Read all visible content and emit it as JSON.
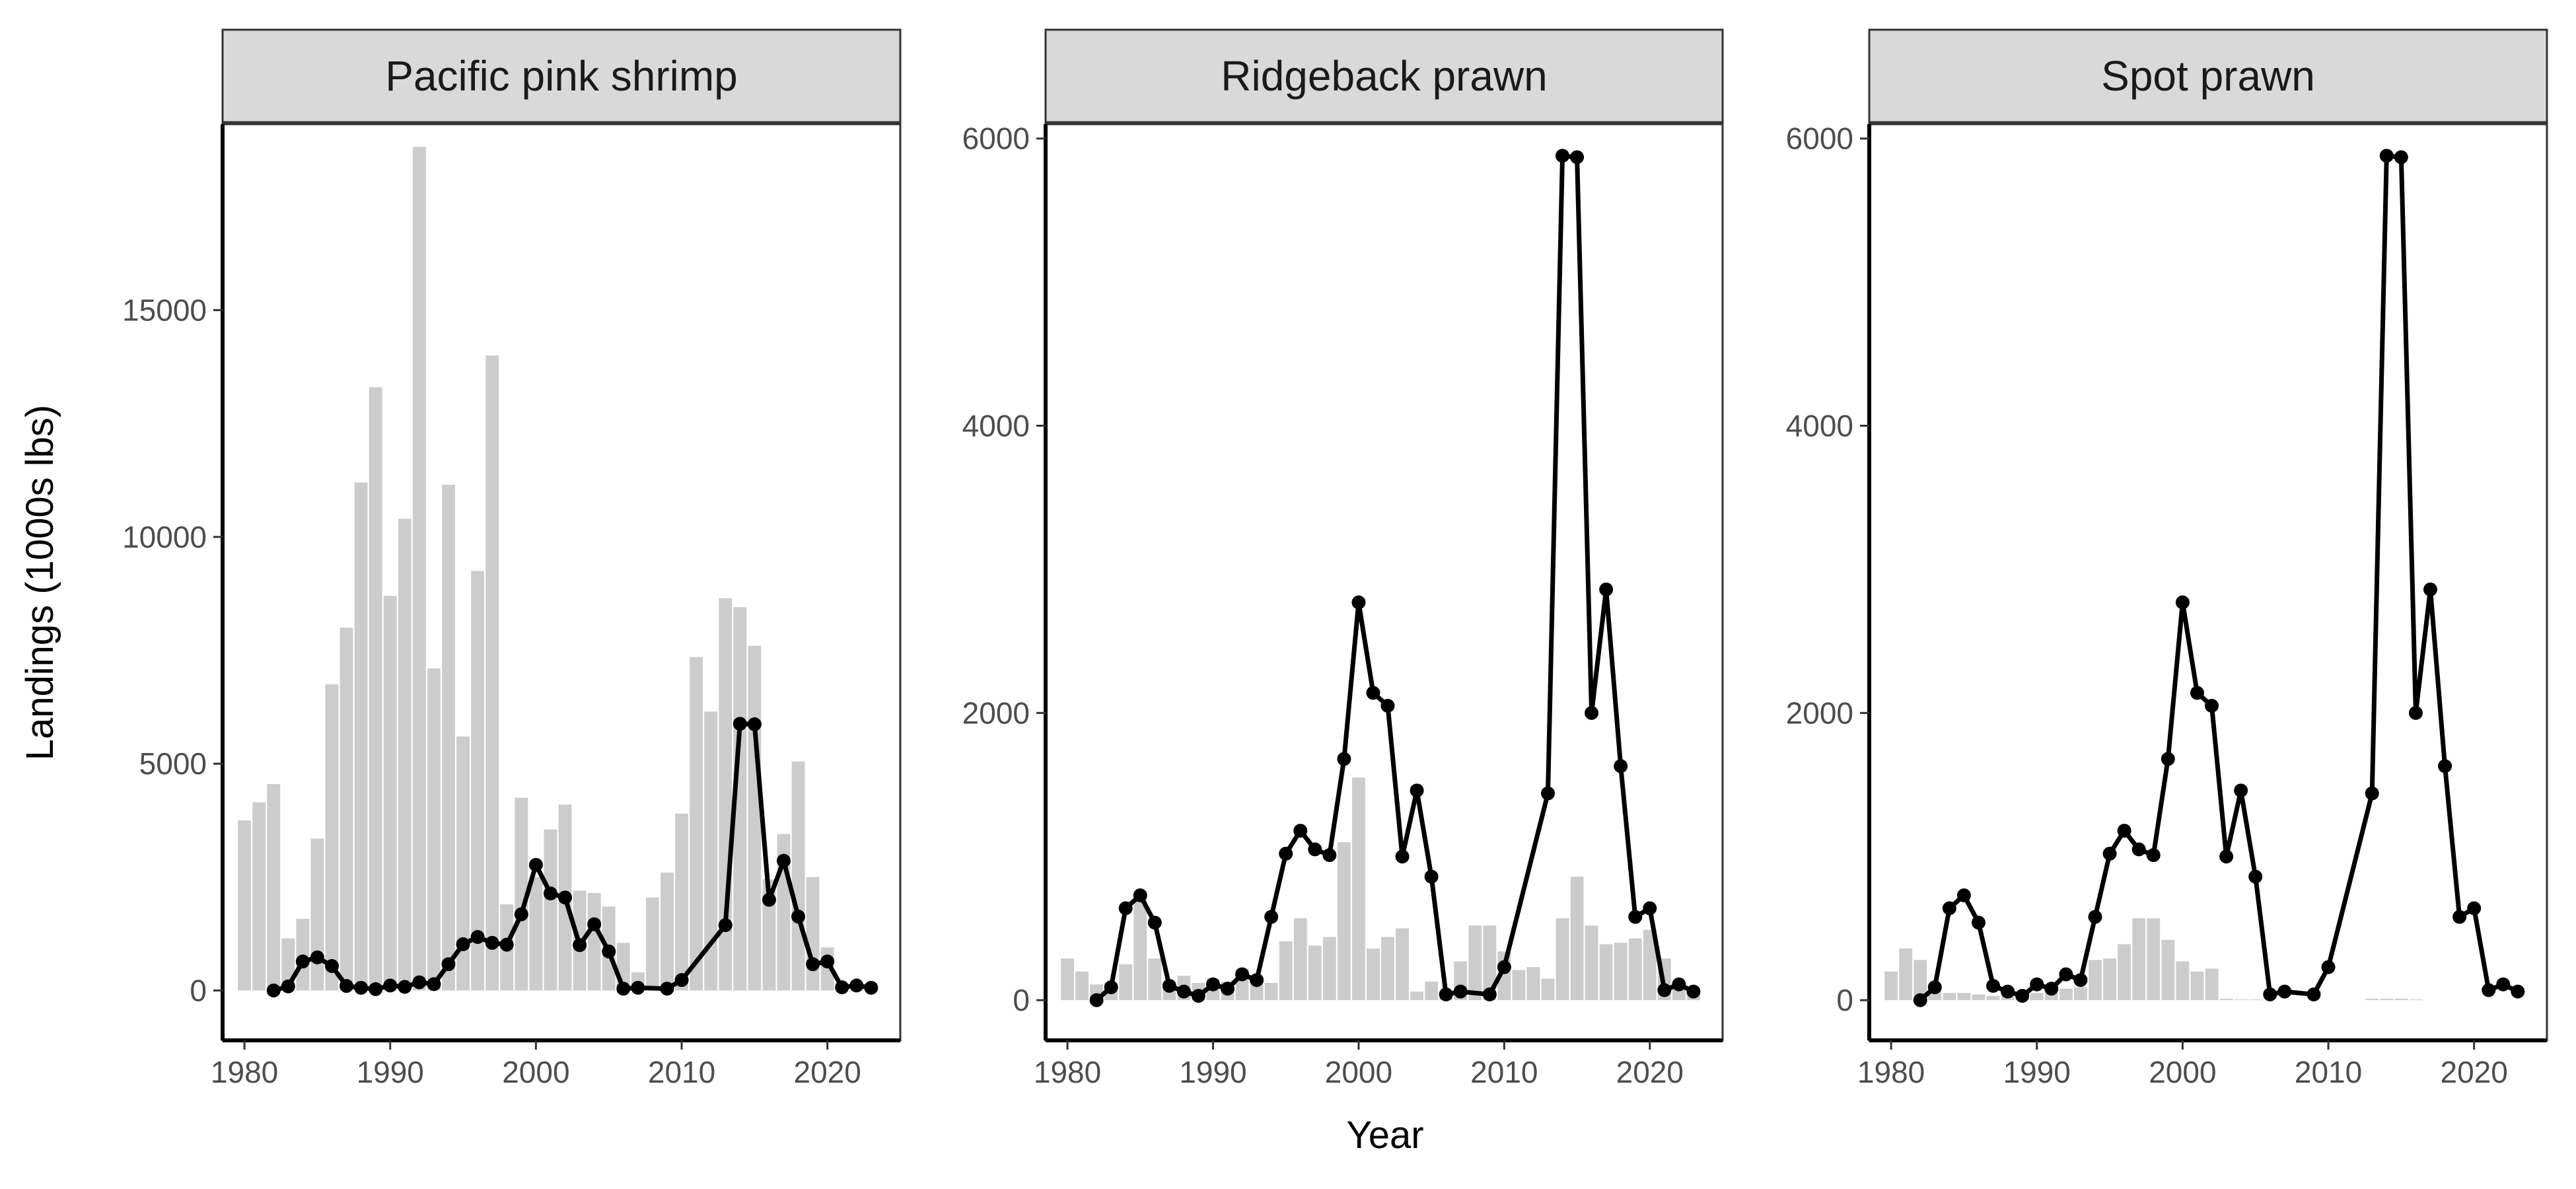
{
  "figure": {
    "xlabel": "Year",
    "ylabel": "Landings (1000s lbs)"
  },
  "chart_data": [
    {
      "type": "bar",
      "title": "Pacific pink shrimp",
      "xlim": [
        1978.5,
        2025
      ],
      "ylim": [
        -1100,
        19100
      ],
      "x_ticks": [
        1980,
        1990,
        2000,
        2010,
        2020
      ],
      "y_ticks": [
        0,
        5000,
        10000,
        15000
      ],
      "grid": false,
      "bars": {
        "x": [
          1980,
          1981,
          1982,
          1983,
          1984,
          1985,
          1986,
          1987,
          1988,
          1989,
          1990,
          1991,
          1992,
          1993,
          1994,
          1995,
          1996,
          1997,
          1998,
          1999,
          2000,
          2001,
          2002,
          2003,
          2004,
          2005,
          2006,
          2007,
          2008,
          2009,
          2010,
          2011,
          2012,
          2013,
          2014,
          2015,
          2016,
          2017,
          2018,
          2019,
          2020,
          2021,
          2022,
          2023
        ],
        "values": [
          3750,
          4150,
          4550,
          1150,
          1580,
          3350,
          6750,
          8000,
          11200,
          13300,
          8700,
          10400,
          18600,
          7100,
          11150,
          5600,
          9250,
          14000,
          1900,
          4250,
          2500,
          3550,
          4100,
          2200,
          2150,
          1850,
          1050,
          400,
          2050,
          2600,
          3900,
          7350,
          6150,
          8650,
          8450,
          7600,
          2450,
          3450,
          5050,
          2500,
          950,
          50,
          100,
          50
        ]
      },
      "line": {
        "x": [
          1982,
          1983,
          1984,
          1985,
          1986,
          1987,
          1988,
          1989,
          1990,
          1991,
          1992,
          1993,
          1994,
          1995,
          1996,
          1997,
          1998,
          1999,
          2000,
          2001,
          2002,
          2003,
          2004,
          2005,
          2006,
          2007,
          2009,
          2010,
          2013,
          2014,
          2015,
          2016,
          2017,
          2018,
          2019,
          2020,
          2021,
          2022,
          2023
        ],
        "values": [
          0,
          90,
          640,
          730,
          540,
          100,
          60,
          30,
          110,
          80,
          180,
          140,
          580,
          1020,
          1180,
          1050,
          1010,
          1680,
          2770,
          2140,
          2050,
          1000,
          1460,
          860,
          40,
          60,
          40,
          230,
          1440,
          5880,
          5870,
          2000,
          2860,
          1630,
          580,
          640,
          70,
          110,
          60
        ]
      }
    },
    {
      "type": "bar",
      "title": "Ridgeback prawn",
      "xlim": [
        1978.5,
        2025
      ],
      "ylim": [
        -280,
        6100
      ],
      "x_ticks": [
        1980,
        1990,
        2000,
        2010,
        2020
      ],
      "y_ticks": [
        0,
        2000,
        4000,
        6000
      ],
      "grid": false,
      "bars": {
        "x": [
          1980,
          1981,
          1982,
          1983,
          1984,
          1985,
          1986,
          1987,
          1988,
          1989,
          1990,
          1991,
          1992,
          1993,
          1994,
          1995,
          1996,
          1997,
          1998,
          1999,
          2000,
          2001,
          2002,
          2003,
          2004,
          2005,
          2006,
          2007,
          2008,
          2009,
          2010,
          2011,
          2012,
          2013,
          2014,
          2015,
          2016,
          2017,
          2018,
          2019,
          2020,
          2021,
          2022,
          2023
        ],
        "values": [
          290,
          200,
          110,
          120,
          250,
          750,
          290,
          120,
          170,
          120,
          150,
          130,
          220,
          150,
          120,
          410,
          570,
          380,
          440,
          1100,
          1550,
          360,
          440,
          500,
          60,
          130,
          60,
          270,
          520,
          520,
          340,
          210,
          230,
          150,
          570,
          860,
          520,
          390,
          400,
          430,
          490,
          290,
          100,
          50
        ]
      },
      "line": {
        "x": [
          1982,
          1983,
          1984,
          1985,
          1986,
          1987,
          1988,
          1989,
          1990,
          1991,
          1992,
          1993,
          1994,
          1995,
          1996,
          1997,
          1998,
          1999,
          2000,
          2001,
          2002,
          2003,
          2004,
          2005,
          2006,
          2007,
          2009,
          2010,
          2013,
          2014,
          2015,
          2016,
          2017,
          2018,
          2019,
          2020,
          2021,
          2022,
          2023
        ],
        "values": [
          0,
          90,
          640,
          730,
          540,
          100,
          60,
          30,
          110,
          80,
          180,
          140,
          580,
          1020,
          1180,
          1050,
          1010,
          1680,
          2770,
          2140,
          2050,
          1000,
          1460,
          860,
          40,
          60,
          40,
          230,
          1440,
          5880,
          5870,
          2000,
          2860,
          1630,
          580,
          640,
          70,
          110,
          60
        ]
      }
    },
    {
      "type": "bar",
      "title": "Spot prawn",
      "xlim": [
        1978.5,
        2025
      ],
      "ylim": [
        -280,
        6100
      ],
      "x_ticks": [
        1980,
        1990,
        2000,
        2010,
        2020
      ],
      "y_ticks": [
        0,
        2000,
        4000,
        6000
      ],
      "grid": false,
      "bars": {
        "x": [
          1980,
          1981,
          1982,
          1983,
          1984,
          1985,
          1986,
          1987,
          1988,
          1989,
          1990,
          1991,
          1992,
          1993,
          1994,
          1995,
          1996,
          1997,
          1998,
          1999,
          2000,
          2001,
          2002,
          2003,
          2004,
          2005,
          2006,
          2007,
          2008,
          2009,
          2010,
          2011,
          2012,
          2013,
          2014,
          2015,
          2016,
          2017,
          2018,
          2019,
          2020,
          2021,
          2022,
          2023
        ],
        "values": [
          200,
          360,
          280,
          60,
          50,
          50,
          40,
          30,
          40,
          30,
          50,
          50,
          80,
          90,
          280,
          290,
          390,
          570,
          570,
          420,
          270,
          200,
          220,
          10,
          5,
          5,
          0,
          0,
          0,
          0,
          0,
          0,
          0,
          10,
          10,
          10,
          5,
          0,
          0,
          0,
          0,
          0,
          0,
          0
        ]
      },
      "line": {
        "x": [
          1982,
          1983,
          1984,
          1985,
          1986,
          1987,
          1988,
          1989,
          1990,
          1991,
          1992,
          1993,
          1994,
          1995,
          1996,
          1997,
          1998,
          1999,
          2000,
          2001,
          2002,
          2003,
          2004,
          2005,
          2006,
          2007,
          2009,
          2010,
          2013,
          2014,
          2015,
          2016,
          2017,
          2018,
          2019,
          2020,
          2021,
          2022,
          2023
        ],
        "values": [
          0,
          90,
          640,
          730,
          540,
          100,
          60,
          30,
          110,
          80,
          180,
          140,
          580,
          1020,
          1180,
          1050,
          1010,
          1680,
          2770,
          2140,
          2050,
          1000,
          1460,
          860,
          40,
          60,
          40,
          230,
          1440,
          5880,
          5870,
          2000,
          2860,
          1630,
          580,
          640,
          70,
          110,
          60
        ]
      }
    }
  ],
  "colors": {
    "bar": "#cccccc",
    "line": "#000000",
    "strip_fill": "#d9d9d9",
    "panel_border": "#333333",
    "axis_line": "#000000",
    "tick_text": "#4d4d4d",
    "title_text": "#000000"
  }
}
